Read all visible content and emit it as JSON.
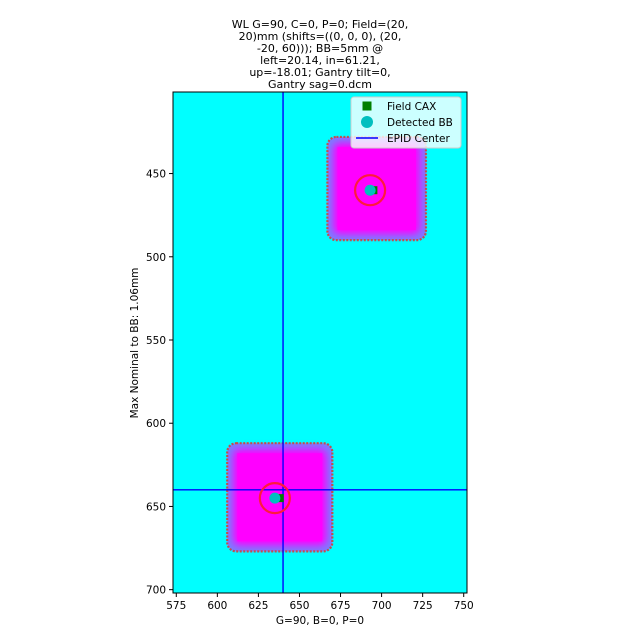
{
  "chart_data": {
    "type": "scatter",
    "title_lines": [
      "WL G=90, C=0, P=0; Field=(20,",
      "20)mm (shifts=((0, 0, 0), (20,",
      "-20, 60))); BB=5mm @",
      "left=20.14, in=61.21,",
      "up=-18.01; Gantry tilt=0,",
      "Gantry sag=0.dcm"
    ],
    "xlabel": "G=90, B=0, P=0",
    "ylabel": "Max Nominal to BB: 1.06mm",
    "xlim": [
      573,
      752
    ],
    "ylim": [
      702,
      401
    ],
    "x_ticks": [
      575,
      600,
      625,
      650,
      675,
      700,
      725,
      750
    ],
    "y_ticks": [
      450,
      500,
      550,
      600,
      650,
      700
    ],
    "background_color": "#00ffff",
    "field_color": "#ff00ff",
    "field_edge_color": "#7b7bff",
    "outline_color": "#c0504d",
    "bb_circle_color": "#ff1a3c",
    "fields": [
      {
        "x_range": [
          667,
          727
        ],
        "y_range": [
          428,
          490
        ]
      },
      {
        "x_range": [
          606,
          670
        ],
        "y_range": [
          612,
          677
        ]
      }
    ],
    "epid_center": {
      "x": 640,
      "y": 640,
      "color": "#0000ff"
    },
    "series": [
      {
        "name": "Field CAX",
        "marker": "square",
        "color": "#007f00",
        "points": [
          [
            695,
            460
          ],
          [
            638,
            645
          ]
        ]
      },
      {
        "name": "Detected BB",
        "marker": "circle",
        "color": "#00bfbf",
        "points": [
          [
            693,
            460
          ],
          [
            635,
            645
          ]
        ]
      },
      {
        "name": "EPID Center",
        "marker": "line",
        "color": "#0000ff"
      }
    ],
    "legend_position": "upper-right",
    "bb_circle_radius": 8
  }
}
